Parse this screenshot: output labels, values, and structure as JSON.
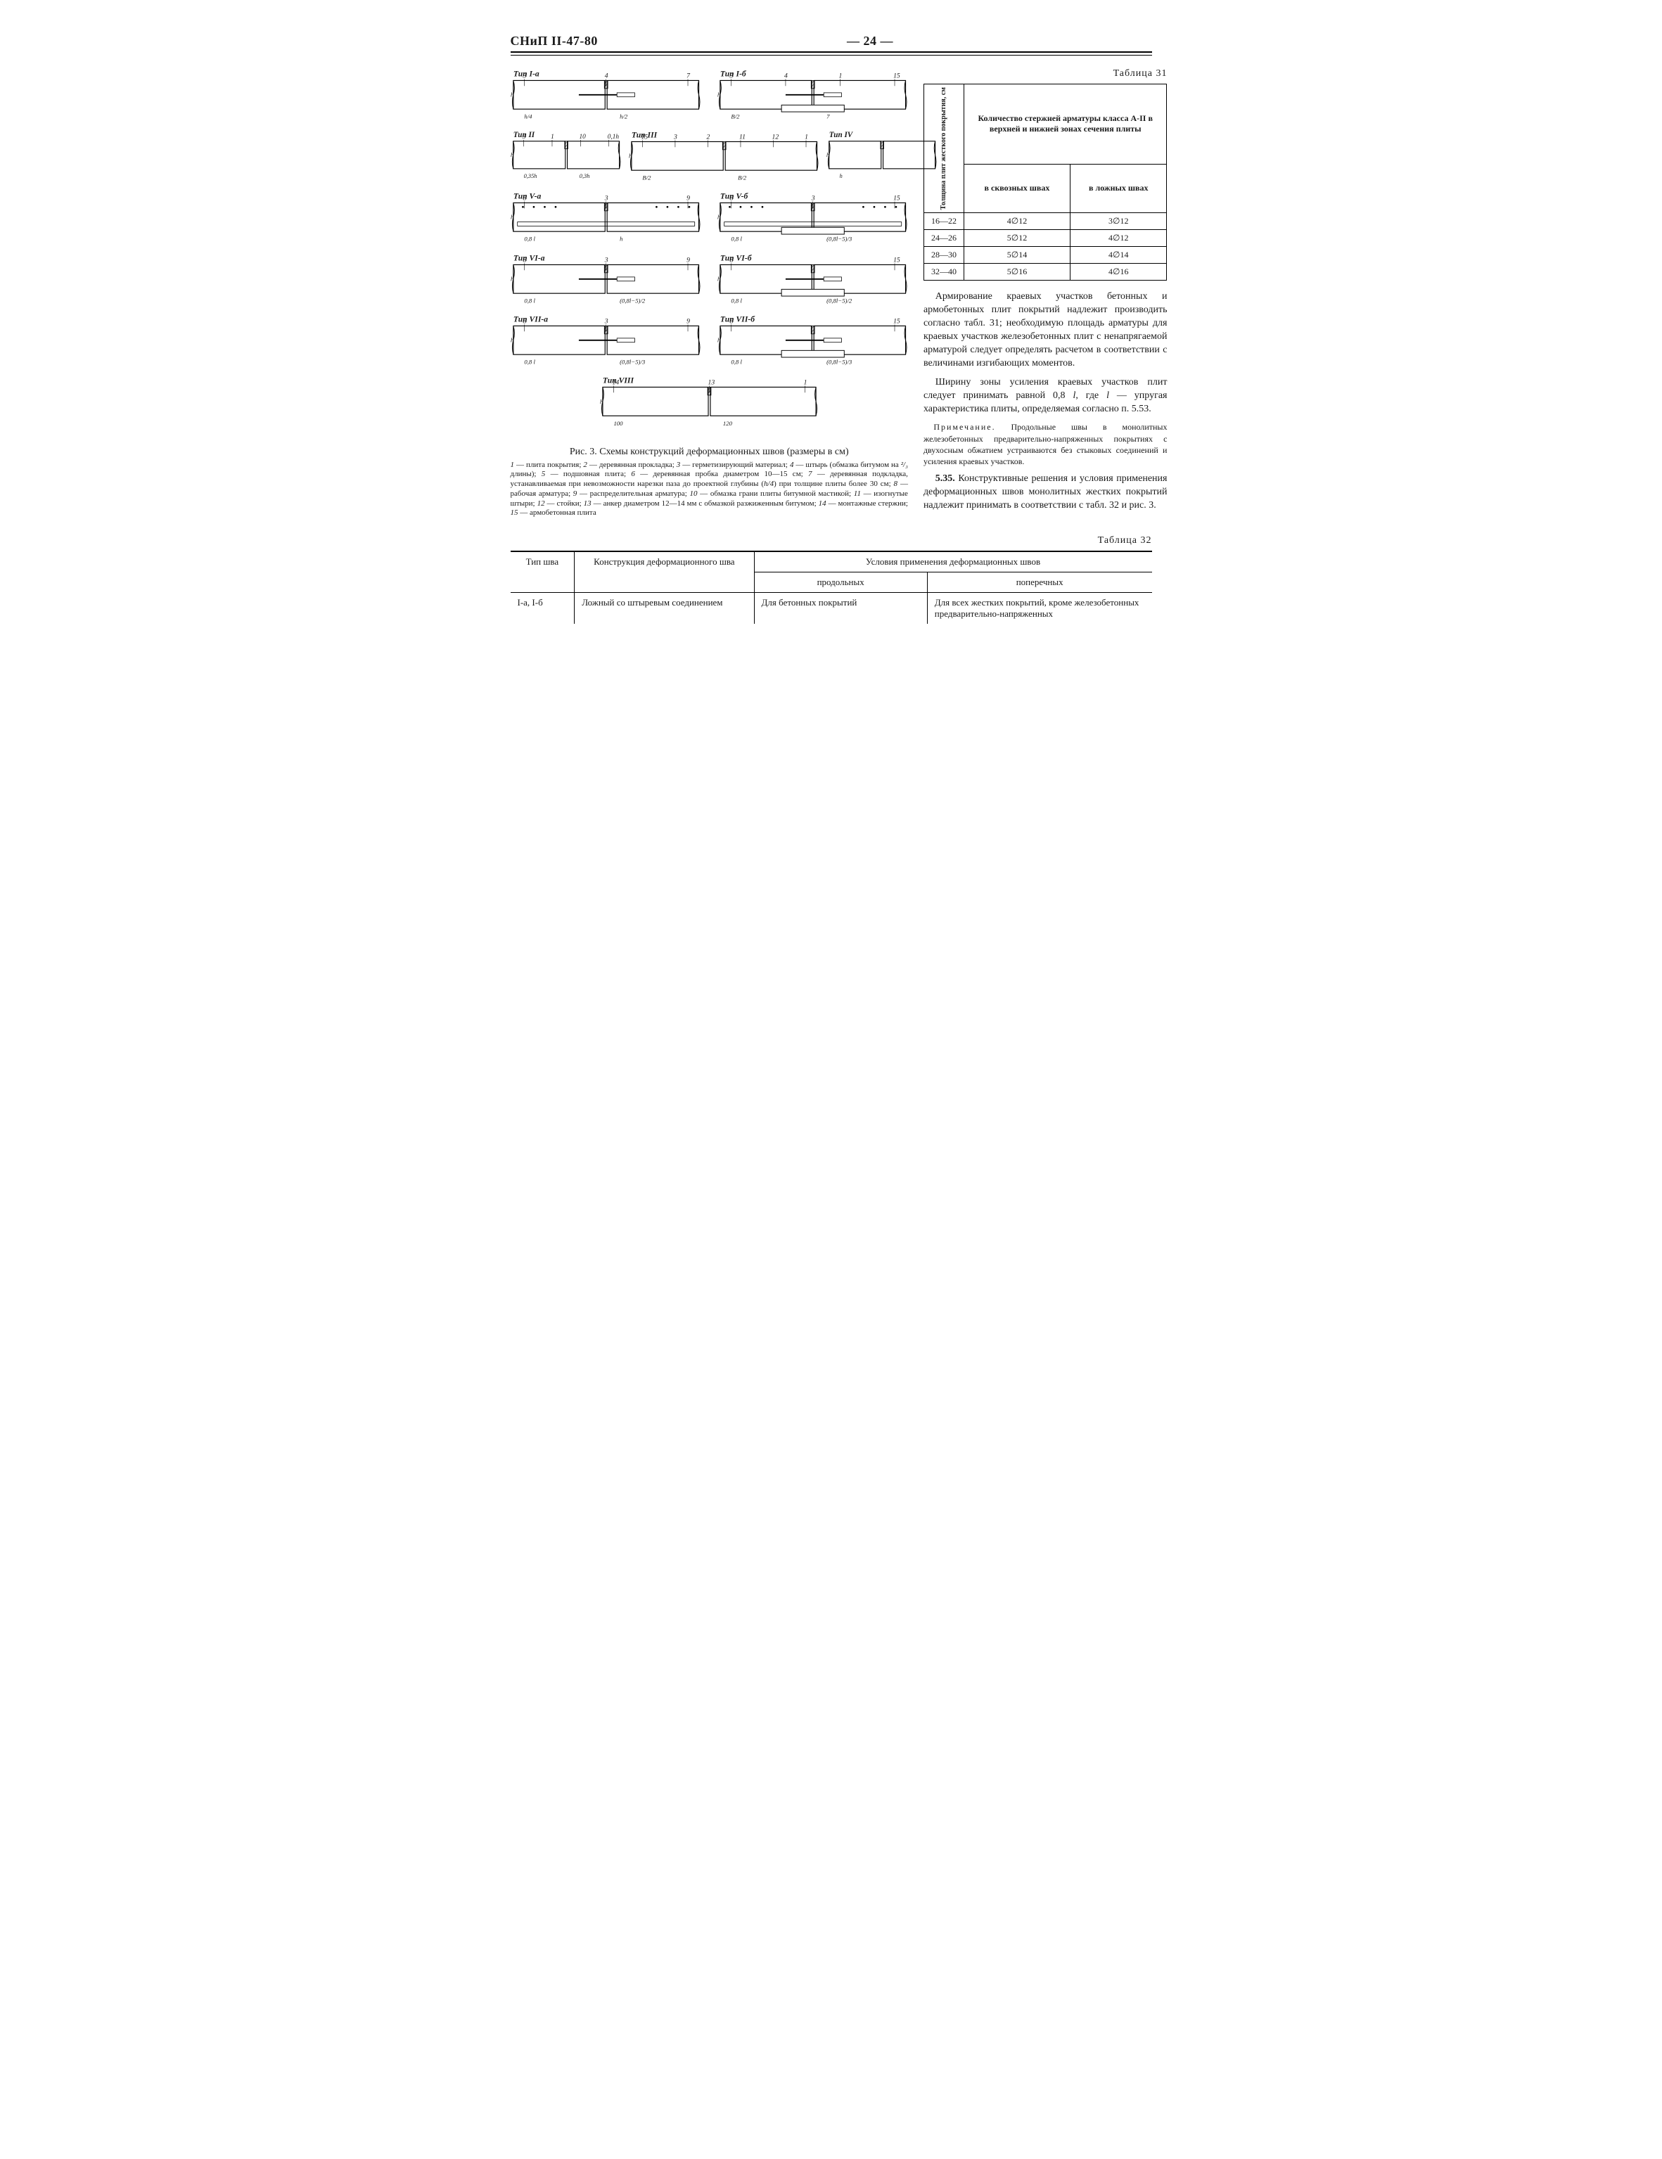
{
  "header": {
    "doc_code": "СНиП II-47-80",
    "page_no": "— 24 —"
  },
  "figure": {
    "caption": "Рис. 3. Схемы конструкций деформационных швов (размеры в см)",
    "legend_parts": [
      "1",
      " — плита покрытия; ",
      "2",
      " — деревянная прокладка; ",
      "3",
      " — герметизирующий материал; ",
      "4",
      " — штырь (обмазка битумом на ",
      "²/₃",
      " длины); ",
      "5",
      " — подшовная плита; ",
      "6",
      " — деревянная пробка диаметром 10—15 см; ",
      "7",
      " — деревянная подкладка, устанавливаемая при невозможности нарезки паза до проектной глубины (",
      "h/4",
      ") при толщине плиты более 30 см; ",
      "8",
      " — рабочая арматура; ",
      "9",
      " — распределительная арматура; ",
      "10",
      " — обмазка грани плиты битумной мастикой; ",
      "11",
      " — изогнутые штыри; ",
      "12",
      " — стойки; ",
      "13",
      " — анкер диаметром 12—14 мм с обмазкой разжиженным битумом; ",
      "14",
      " — монтажные стержни; ",
      "15",
      " — армобетонная плита"
    ],
    "diagrams": [
      {
        "title": "Тип I-а",
        "callouts": [
          "3",
          "4",
          "7"
        ],
        "dims": [
          "h/4",
          "h/2",
          "h/2",
          "h"
        ]
      },
      {
        "title": "Тип I-б",
        "callouts": [
          "3",
          "4",
          "1",
          "15"
        ],
        "dims": [
          "B/2",
          "7",
          "B/2",
          "B",
          "h/4",
          "h/2",
          "h/2",
          "h"
        ]
      },
      {
        "title": "Тип II",
        "callouts": [
          "3",
          "1",
          "10",
          "0,1h"
        ],
        "dims": [
          "0,35h",
          "0,3h",
          "0,35h",
          "h"
        ]
      },
      {
        "title": "Тип III",
        "callouts": [
          "15",
          "3",
          "2",
          "11",
          "12",
          "1"
        ],
        "dims": [
          "B/2",
          "B/2",
          "B",
          "h/2",
          "h/2",
          "h"
        ]
      },
      {
        "title": "Тип IV",
        "callouts": [],
        "dims": [
          "h"
        ]
      },
      {
        "title": "Тип V-а",
        "callouts": [
          "8",
          "3",
          "9"
        ],
        "dims": [
          "0,8 l",
          "h"
        ]
      },
      {
        "title": "Тип V-б",
        "callouts": [
          "8",
          "3",
          "15"
        ],
        "dims": [
          "0,8 l",
          "(0,8l−5)/3",
          "h"
        ]
      },
      {
        "title": "Тип VI-а",
        "callouts": [
          "8",
          "3",
          "9"
        ],
        "dims": [
          "0,8 l",
          "(0,8l−5)/2",
          "h",
          "h/4"
        ]
      },
      {
        "title": "Тип VI-б",
        "callouts": [
          "8",
          "15"
        ],
        "dims": [
          "0,8 l",
          "(0,8l−5)/2",
          "h",
          "h/4"
        ]
      },
      {
        "title": "Тип VII-а",
        "callouts": [
          "8",
          "3",
          "9"
        ],
        "dims": [
          "0,8 l",
          "(0,8l−5)/3",
          "h",
          "h/4"
        ]
      },
      {
        "title": "Тип VII-б",
        "callouts": [
          "8",
          "15"
        ],
        "dims": [
          "0,8 l",
          "(0,8l−5)/3",
          "h",
          "h/4"
        ]
      },
      {
        "title": "Тип VIII",
        "callouts": [
          "14",
          "13",
          "1"
        ],
        "dims": [
          "100",
          "120",
          "h",
          "h/2",
          "h/2",
          "h/4"
        ]
      }
    ]
  },
  "table31": {
    "label": "Таблица 31",
    "col_rot_header": "Толщина плит жесткого покрытия, см",
    "header_top": "Количество стержней арматуры класса А-II в верхней и нижней зонах сечения плиты",
    "header_sub1": "в сквозных швах",
    "header_sub2": "в ложных швах",
    "rows": [
      {
        "thk": "16—22",
        "a": "4∅12",
        "b": "3∅12"
      },
      {
        "thk": "24—26",
        "a": "5∅12",
        "b": "4∅12"
      },
      {
        "thk": "28—30",
        "a": "5∅14",
        "b": "4∅14"
      },
      {
        "thk": "32—40",
        "a": "5∅16",
        "b": "4∅16"
      }
    ]
  },
  "body": {
    "p1": "Армирование краевых участков бетонных и армобетонных плит покрытий надлежит производить согласно табл. 31; необходимую площадь арматуры для краевых участков железобетонных плит с ненапрягаемой арматурой следует определять расчетом в соответствии с величинами изгибающих моментов.",
    "p2_a": "Ширину зоны усиления краевых участков плит следует принимать равной 0,8 ",
    "p2_l": "l",
    "p2_b": ", где ",
    "p2_l2": "l",
    "p2_c": " — упругая характеристика плиты, определяемая согласно п. 5.53.",
    "note_lead": "Примечание.",
    "note": " Продольные швы в монолитных железобетонных предварительно-напряженных покрытиях с двухосным обжатием устраиваются без стыковых соединений и усиления краевых участков.",
    "p3_num": "5.35.",
    "p3": " Конструктивные решения и условия применения деформационных швов монолитных жестких покрытий надлежит принимать в соответствии с табл. 32 и рис. 3."
  },
  "table32": {
    "label": "Таблица 32",
    "h_type": "Тип шва",
    "h_constr": "Конструкция деформационного шва",
    "h_cond": "Условия применения деформационных швов",
    "h_long": "продольных",
    "h_trans": "поперечных",
    "row1": {
      "type": "I-а, I-б",
      "constr": "Ложный со штыревым соединением",
      "long": "Для бетонных покрытий",
      "trans": "Для всех жестких покрытий, кроме железобетонных предварительно-напряженных"
    }
  }
}
